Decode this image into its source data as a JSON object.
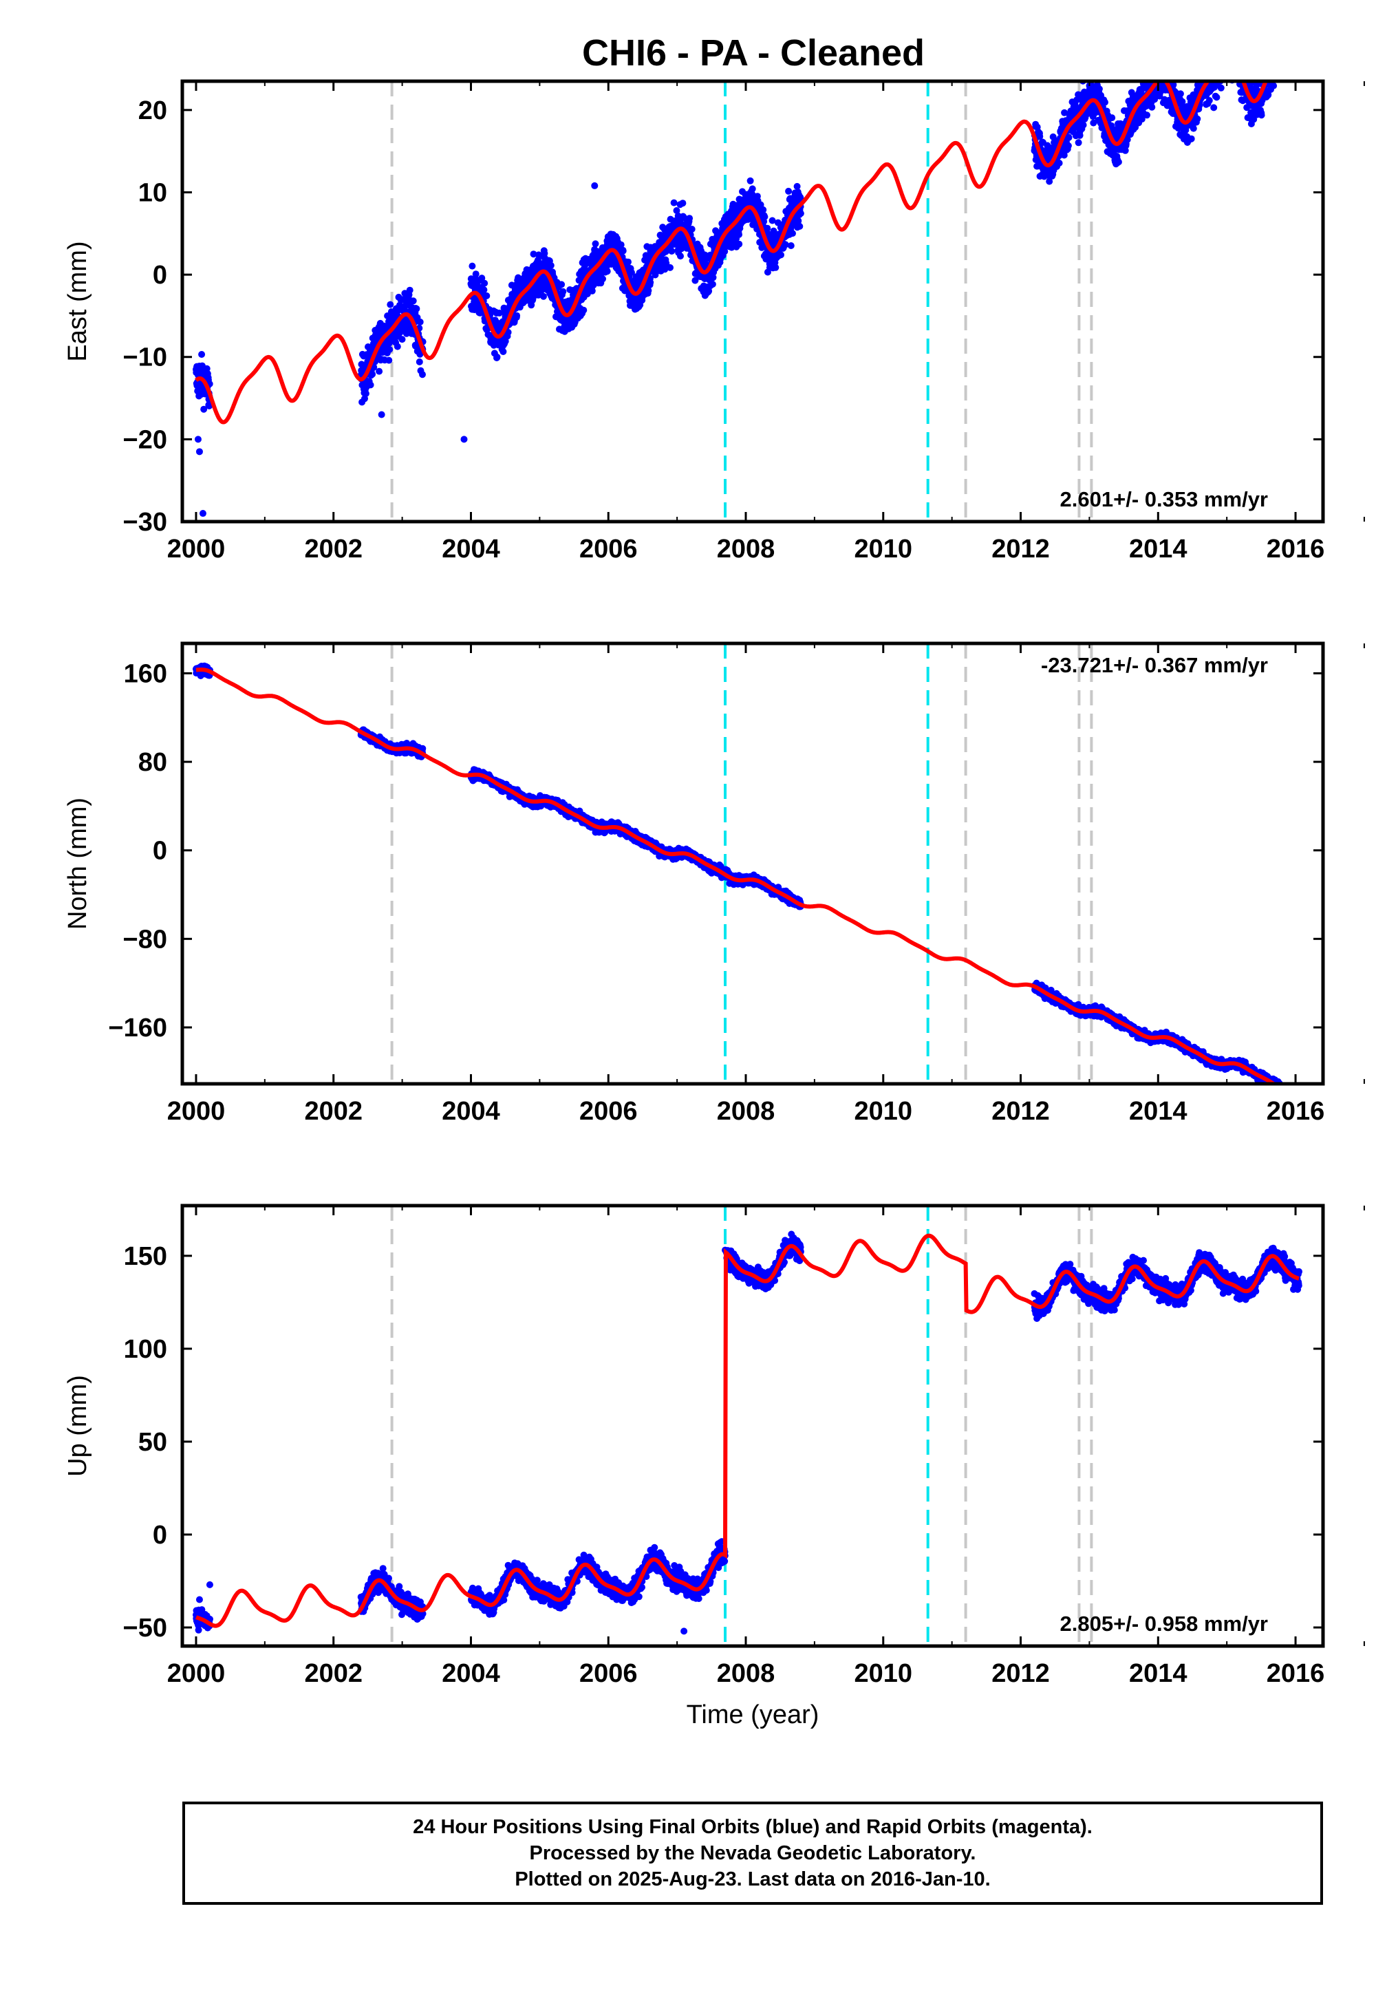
{
  "figure_title": "CHI6  - PA - Cleaned",
  "footer": {
    "lines": [
      "24 Hour Positions Using Final Orbits (blue) and Rapid Orbits (magenta).",
      "Processed by the Nevada Geodetic Laboratory.",
      "Plotted on 2025-Aug-23. Last data on 2016-Jan-10."
    ]
  },
  "colors": {
    "data_points": "#0000ff",
    "model_fit": "#ff0000",
    "antenna_change": "#00e5ee",
    "equipment_change": "#c8c8c8"
  },
  "chart_data": [
    {
      "type": "scatter",
      "name": "east",
      "xlabel": "",
      "ylabel": "East (mm)",
      "xlim": [
        1999.8,
        2016.4
      ],
      "ylim": [
        -30,
        23.5
      ],
      "xticks": [
        2000,
        2002,
        2004,
        2006,
        2008,
        2010,
        2012,
        2014,
        2016
      ],
      "yticks": [
        -30,
        -20,
        -10,
        0,
        10,
        20
      ],
      "ytick_labels": [
        "−30",
        "−20",
        "−10",
        "0",
        "10",
        "20"
      ],
      "rate_label": "2.601+/- 0.353 mm/yr",
      "rate_position": "bottom-right",
      "data_segments": [
        [
          2000.0,
          2000.2
        ],
        [
          2002.4,
          2003.3
        ],
        [
          2004.0,
          2008.8
        ],
        [
          2012.2,
          2016.05
        ]
      ],
      "model": {
        "intercept_2000": -15.5,
        "rate": 2.6,
        "annual_amp": 2.8,
        "phase": 0.3,
        "offsets": []
      },
      "point_scatter": 2.5,
      "outliers": [
        [
          2000.03,
          -20.0
        ],
        [
          2000.05,
          -21.5
        ],
        [
          2000.1,
          -29.0
        ],
        [
          2005.8,
          10.8
        ],
        [
          2003.9,
          -20.0
        ],
        [
          2002.7,
          -17.0
        ]
      ],
      "cyan_lines": [
        2007.7,
        2010.65
      ],
      "gray_lines": [
        2002.85,
        2011.2,
        2012.85,
        2013.03
      ]
    },
    {
      "type": "scatter",
      "name": "north",
      "xlabel": "",
      "ylabel": "North (mm)",
      "xlim": [
        1999.8,
        2016.4
      ],
      "ylim": [
        -211,
        187
      ],
      "xticks": [
        2000,
        2002,
        2004,
        2006,
        2008,
        2010,
        2012,
        2014,
        2016
      ],
      "yticks": [
        -160,
        -80,
        0,
        80,
        160
      ],
      "ytick_labels": [
        "−160",
        "−80",
        "0",
        "80",
        "160"
      ],
      "rate_label": "-23.721+/- 0.367 mm/yr",
      "rate_position": "top-right",
      "data_segments": [
        [
          2000.0,
          2000.2
        ],
        [
          2002.4,
          2003.3
        ],
        [
          2004.0,
          2008.8
        ],
        [
          2012.2,
          2016.05
        ]
      ],
      "model": {
        "intercept_2000": 163,
        "rate": -23.72,
        "annual_amp": 3.0,
        "phase": 0.0,
        "offsets": []
      },
      "point_scatter": 4,
      "outliers": [],
      "cyan_lines": [
        2007.7,
        2010.65
      ],
      "gray_lines": [
        2002.85,
        2011.2,
        2012.85,
        2013.03
      ]
    },
    {
      "type": "scatter",
      "name": "up",
      "xlabel": "Time (year)",
      "ylabel": "Up (mm)",
      "xlim": [
        1999.8,
        2016.4
      ],
      "ylim": [
        -60,
        177
      ],
      "xticks": [
        2000,
        2002,
        2004,
        2006,
        2008,
        2010,
        2012,
        2014,
        2016
      ],
      "yticks": [
        -50,
        0,
        50,
        100,
        150
      ],
      "ytick_labels": [
        "−50",
        "0",
        "50",
        "100",
        "150"
      ],
      "rate_label": "2.805+/- 0.958 mm/yr",
      "rate_position": "bottom-right",
      "data_segments": [
        [
          2000.0,
          2000.2
        ],
        [
          2002.4,
          2003.3
        ],
        [
          2004.0,
          2007.7
        ],
        [
          2007.72,
          2008.8
        ],
        [
          2012.2,
          2016.05
        ]
      ],
      "model": {
        "intercept_2000": -42,
        "rate": 2.805,
        "annual_amp": 8,
        "phase": 0.55,
        "offsets": [
          [
            2007.7,
            163
          ],
          [
            2010.65,
            0
          ],
          [
            2011.2,
            -25
          ]
        ]
      },
      "point_scatter": 5,
      "outliers": [
        [
          2000.05,
          -35
        ],
        [
          2000.1,
          -46
        ],
        [
          2000.2,
          -27
        ],
        [
          2007.1,
          -52
        ]
      ],
      "cyan_lines": [
        2007.7,
        2010.65
      ],
      "gray_lines": [
        2002.85,
        2011.2,
        2012.85,
        2013.03
      ]
    }
  ]
}
